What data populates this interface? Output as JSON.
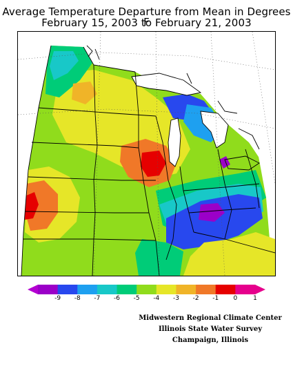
{
  "title": {
    "line1": "Average Temperature Departure from Mean in Degrees F",
    "line2": "February 15, 2003 to February 21, 2003"
  },
  "legend": {
    "ticks": [
      "-9",
      "-8",
      "-7",
      "-6",
      "-5",
      "-4",
      "-3",
      "-2",
      "-1",
      "0",
      "1"
    ],
    "colors": [
      "#9b00c8",
      "#2848ee",
      "#1ea0f0",
      "#18c8c8",
      "#00cc78",
      "#90dc1c",
      "#e6e628",
      "#f0b428",
      "#f07828",
      "#e60000",
      "#e6008c"
    ],
    "arrow_left_color": "#b400d2",
    "arrow_right_color": "#e6008c"
  },
  "map": {
    "region": "Midwest United States",
    "background_colors": {
      "land_default": "#90dc1c",
      "water": "#ffffff"
    }
  },
  "credits": {
    "line1": "Midwestern Regional Climate Center",
    "line2": "Illinois State Water Survey",
    "line3": "Champaign, Illinois"
  }
}
